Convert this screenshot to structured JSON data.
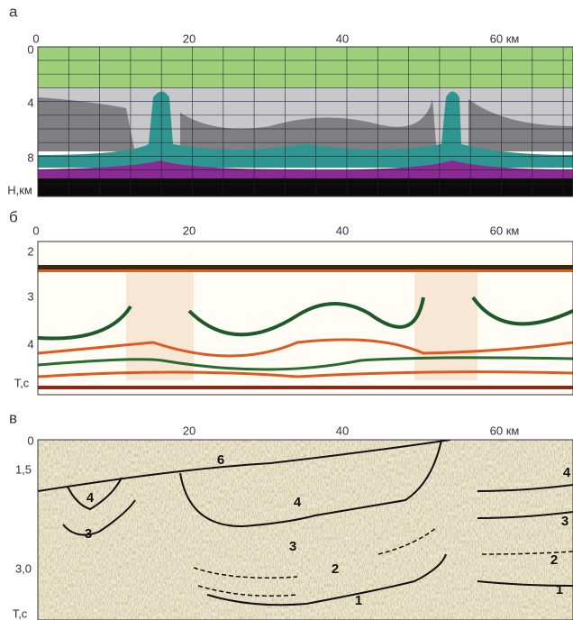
{
  "panels": [
    {
      "label": "а",
      "x_ticks": [
        "0",
        "20",
        "40",
        "60 км"
      ],
      "y_ticks": [
        "0",
        "4",
        "8",
        "Н,км"
      ]
    },
    {
      "label": "б",
      "x_ticks": [
        "0",
        "20",
        "40",
        "60 км"
      ],
      "y_ticks": [
        "2",
        "3",
        "4",
        "T,c"
      ]
    },
    {
      "label": "в",
      "x_ticks": [
        "20",
        "40",
        "60 км"
      ],
      "y_ticks": [
        "0",
        "1,5",
        "3,0",
        "T,c"
      ],
      "layer_labels": [
        "6",
        "4",
        "3",
        "4",
        "3",
        "2",
        "1",
        "4",
        "3",
        "2",
        "1"
      ]
    }
  ]
}
